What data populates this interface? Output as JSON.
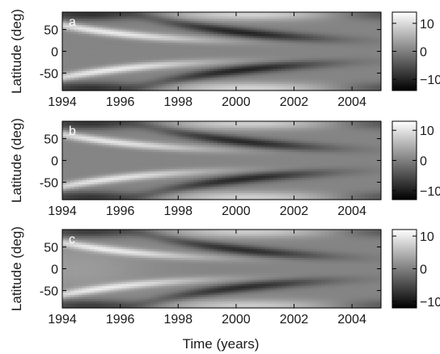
{
  "chart_data": [
    {
      "type": "heatmap",
      "panel_label": "a",
      "x_range": [
        1994,
        2005
      ],
      "y_range": [
        -90,
        90
      ],
      "x_ticks": [
        "1994",
        "1996",
        "1998",
        "2000",
        "2002",
        "2004"
      ],
      "y_ticks": [
        "50",
        "0",
        "-50"
      ],
      "ylabel": "Latitude (deg)",
      "colorbar": {
        "range": [
          -14,
          14
        ],
        "ticks": [
          "10",
          "0",
          "-10"
        ],
        "colormap": "grayscale"
      }
    },
    {
      "type": "heatmap",
      "panel_label": "b",
      "x_range": [
        1994,
        2005
      ],
      "y_range": [
        -90,
        90
      ],
      "x_ticks": [
        "1994",
        "1996",
        "1998",
        "2000",
        "2002",
        "2004"
      ],
      "y_ticks": [
        "50",
        "0",
        "-50"
      ],
      "ylabel": "Latitude (deg)",
      "colorbar": {
        "range": [
          -13,
          13
        ],
        "ticks": [
          "10",
          "0",
          "-10"
        ],
        "colormap": "grayscale"
      }
    },
    {
      "type": "heatmap",
      "panel_label": "c",
      "x_range": [
        1994,
        2005
      ],
      "y_range": [
        -90,
        90
      ],
      "x_ticks": [
        "1994",
        "1996",
        "1998",
        "2000",
        "2002",
        "2004"
      ],
      "y_ticks": [
        "50",
        "0",
        "-50"
      ],
      "ylabel": "Latitude (deg)",
      "xlabel": "Time (years)",
      "colorbar": {
        "range": [
          -12,
          12
        ],
        "ticks": [
          "10",
          "0",
          "-10"
        ],
        "colormap": "grayscale"
      }
    }
  ]
}
